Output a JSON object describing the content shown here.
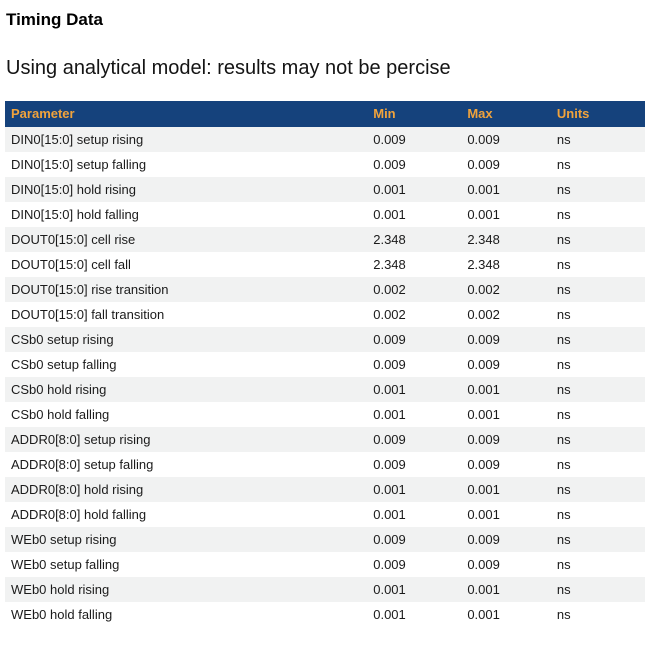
{
  "page": {
    "title": "Timing Data",
    "subtitle": "Using analytical model: results may not be percise"
  },
  "table": {
    "columns": {
      "parameter": "Parameter",
      "min": "Min",
      "max": "Max",
      "units": "Units"
    },
    "rows": [
      {
        "parameter": "DIN0[15:0] setup rising",
        "min": "0.009",
        "max": "0.009",
        "units": "ns"
      },
      {
        "parameter": "DIN0[15:0] setup falling",
        "min": "0.009",
        "max": "0.009",
        "units": "ns"
      },
      {
        "parameter": "DIN0[15:0] hold rising",
        "min": "0.001",
        "max": "0.001",
        "units": "ns"
      },
      {
        "parameter": "DIN0[15:0] hold falling",
        "min": "0.001",
        "max": "0.001",
        "units": "ns"
      },
      {
        "parameter": "DOUT0[15:0] cell rise",
        "min": "2.348",
        "max": "2.348",
        "units": "ns"
      },
      {
        "parameter": "DOUT0[15:0] cell fall",
        "min": "2.348",
        "max": "2.348",
        "units": "ns"
      },
      {
        "parameter": "DOUT0[15:0] rise transition",
        "min": "0.002",
        "max": "0.002",
        "units": "ns"
      },
      {
        "parameter": "DOUT0[15:0] fall transition",
        "min": "0.002",
        "max": "0.002",
        "units": "ns"
      },
      {
        "parameter": "CSb0 setup rising",
        "min": "0.009",
        "max": "0.009",
        "units": "ns"
      },
      {
        "parameter": "CSb0 setup falling",
        "min": "0.009",
        "max": "0.009",
        "units": "ns"
      },
      {
        "parameter": "CSb0 hold rising",
        "min": "0.001",
        "max": "0.001",
        "units": "ns"
      },
      {
        "parameter": "CSb0 hold falling",
        "min": "0.001",
        "max": "0.001",
        "units": "ns"
      },
      {
        "parameter": "ADDR0[8:0] setup rising",
        "min": "0.009",
        "max": "0.009",
        "units": "ns"
      },
      {
        "parameter": "ADDR0[8:0] setup falling",
        "min": "0.009",
        "max": "0.009",
        "units": "ns"
      },
      {
        "parameter": "ADDR0[8:0] hold rising",
        "min": "0.001",
        "max": "0.001",
        "units": "ns"
      },
      {
        "parameter": "ADDR0[8:0] hold falling",
        "min": "0.001",
        "max": "0.001",
        "units": "ns"
      },
      {
        "parameter": "WEb0 setup rising",
        "min": "0.009",
        "max": "0.009",
        "units": "ns"
      },
      {
        "parameter": "WEb0 setup falling",
        "min": "0.009",
        "max": "0.009",
        "units": "ns"
      },
      {
        "parameter": "WEb0 hold rising",
        "min": "0.001",
        "max": "0.001",
        "units": "ns"
      },
      {
        "parameter": "WEb0 hold falling",
        "min": "0.001",
        "max": "0.001",
        "units": "ns"
      }
    ]
  },
  "colors": {
    "table_header_bg": "#15427c",
    "table_header_text": "#f0a33c",
    "row_alt_bg": "#f1f2f2",
    "body_text": "#1b1b1b"
  }
}
